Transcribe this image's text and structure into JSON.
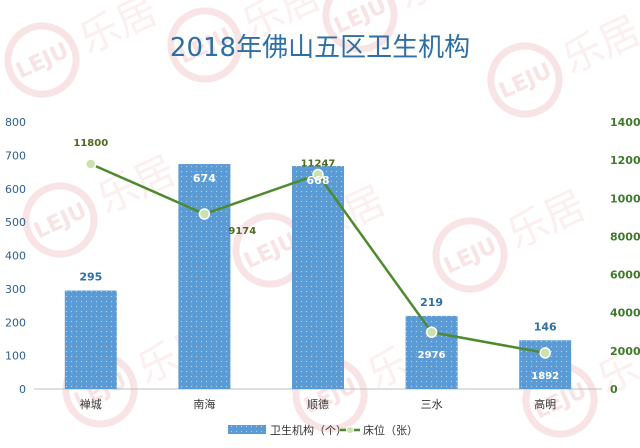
{
  "chart_data": {
    "type": "bar",
    "title": "2018年佛山五区卫生机构",
    "categories": [
      "禅城",
      "南海",
      "顺德",
      "三水",
      "高明"
    ],
    "series": [
      {
        "name": "卫生机构（个）",
        "type": "bar",
        "axis": "left",
        "color": "#5b9bd5",
        "values": [
          295,
          674,
          668,
          219,
          146
        ]
      },
      {
        "name": "床位（张）",
        "type": "line",
        "axis": "right",
        "color": "#4f8a2e",
        "values": [
          11800,
          9174,
          11247,
          2976,
          1892
        ]
      }
    ],
    "y_left": {
      "ylim": [
        0,
        800
      ],
      "ticks": [
        0,
        100,
        200,
        300,
        400,
        500,
        600,
        700,
        800
      ]
    },
    "y_right": {
      "ylim": [
        0,
        14000
      ],
      "ticks": [
        0,
        2000,
        4000,
        6000,
        8000,
        10000,
        12000,
        14000
      ]
    },
    "grid": false,
    "legend": "bottom"
  },
  "watermark": {
    "text": "乐居",
    "logo": "LEJU",
    "color": "#e8a0a0"
  }
}
